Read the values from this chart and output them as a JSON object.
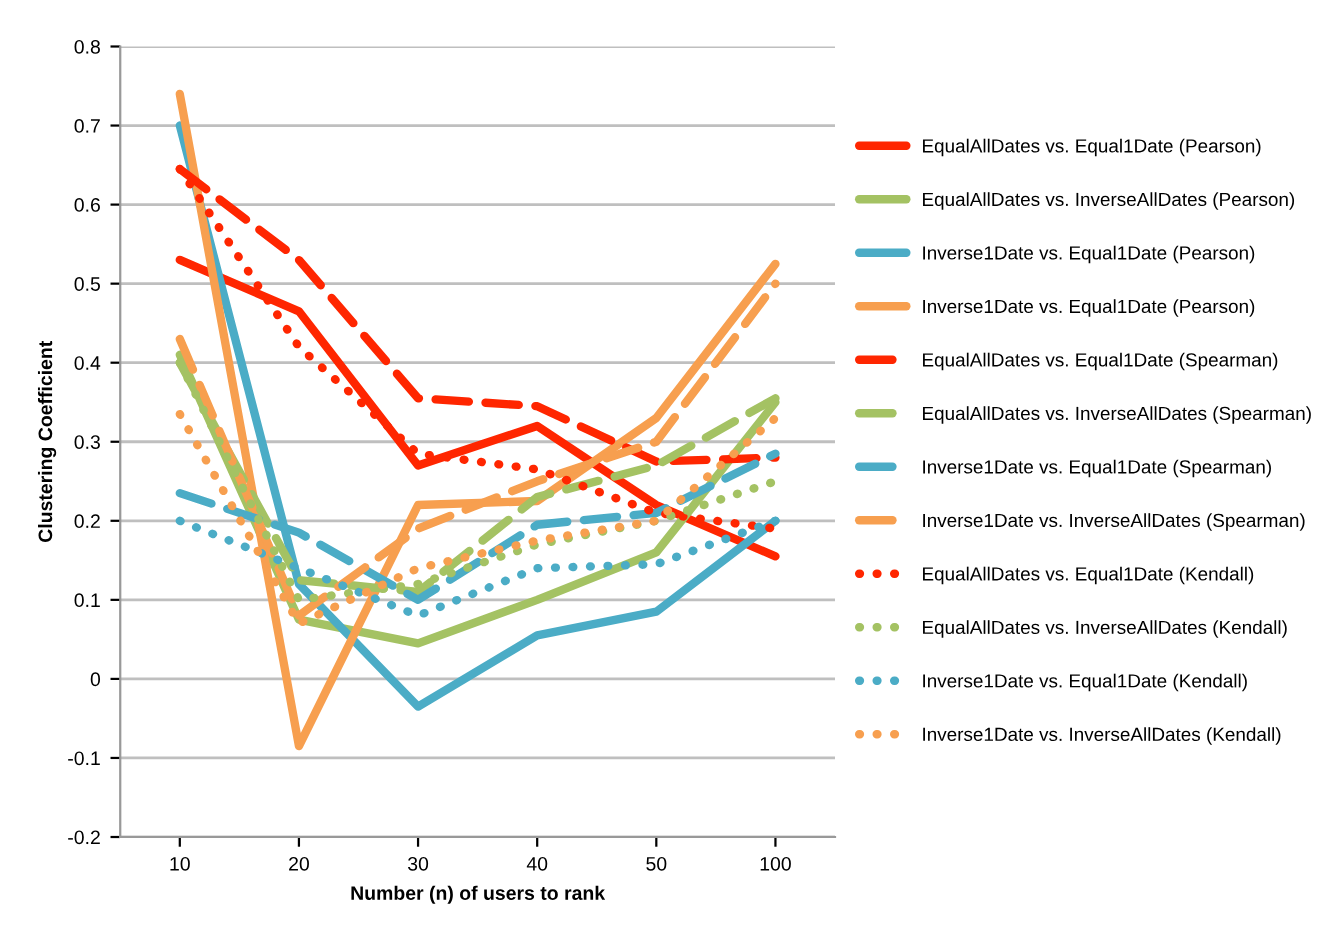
{
  "chart_data": {
    "type": "line",
    "xlabel": "Number (n) of users to rank",
    "ylabel": "Clustering Coefficient",
    "categories": [
      "10",
      "20",
      "30",
      "40",
      "50",
      "100"
    ],
    "ylim": [
      -0.2,
      0.8
    ],
    "yticks": [
      -0.2,
      -0.1,
      0,
      0.1,
      0.2,
      0.3,
      0.4,
      0.5,
      0.6,
      0.7,
      0.8
    ],
    "grid": "y",
    "legend": "right",
    "marker": "none",
    "series": [
      {
        "name": "EqualAllDates vs. Equal1Date (Pearson)",
        "color": "#ff2600",
        "line_style": "solid",
        "values": [
          0.53,
          0.465,
          0.27,
          0.32,
          0.22,
          0.155
        ]
      },
      {
        "name": "EqualAllDates vs. InverseAllDates (Pearson)",
        "color": "#a4c263",
        "line_style": "solid",
        "values": [
          0.41,
          0.075,
          0.045,
          0.1,
          0.16,
          0.35
        ]
      },
      {
        "name": "Inverse1Date vs. Equal1Date (Pearson)",
        "color": "#4bacc6",
        "line_style": "solid",
        "values": [
          0.7,
          0.12,
          -0.035,
          0.055,
          0.085,
          0.2
        ]
      },
      {
        "name": "Inverse1Date vs. Equal1Date (Pearson)",
        "color": "#f79f4f",
        "line_style": "solid",
        "values": [
          0.74,
          -0.085,
          0.22,
          0.225,
          0.33,
          0.525
        ]
      },
      {
        "name": "EqualAllDates vs. Equal1Date (Spearman)",
        "color": "#ff2600",
        "line_style": "dashed",
        "values": [
          0.645,
          0.53,
          0.355,
          0.345,
          0.275,
          0.28
        ]
      },
      {
        "name": "EqualAllDates vs. InverseAllDates (Spearman)",
        "color": "#a4c263",
        "line_style": "dashed",
        "values": [
          0.4,
          0.125,
          0.11,
          0.23,
          0.27,
          0.355
        ]
      },
      {
        "name": "Inverse1Date vs. Equal1Date (Spearman)",
        "color": "#4bacc6",
        "line_style": "dashed",
        "values": [
          0.235,
          0.185,
          0.1,
          0.195,
          0.21,
          0.285
        ]
      },
      {
        "name": "Inverse1Date vs. InverseAllDates (Spearman)",
        "color": "#f79f4f",
        "line_style": "dashed",
        "values": [
          0.43,
          0.08,
          0.19,
          0.25,
          0.3,
          0.5
        ]
      },
      {
        "name": "EqualAllDates vs. Equal1Date (Kendall)",
        "color": "#ff2600",
        "line_style": "dotted",
        "values": [
          0.645,
          0.42,
          0.285,
          0.265,
          0.21,
          0.19
        ]
      },
      {
        "name": "EqualAllDates vs. InverseAllDates (Kendall)",
        "color": "#a4c263",
        "line_style": "dotted",
        "values": [
          0.4,
          0.1,
          0.12,
          0.17,
          0.2,
          0.25
        ]
      },
      {
        "name": "Inverse1Date vs. Equal1Date (Kendall)",
        "color": "#4bacc6",
        "line_style": "dotted",
        "values": [
          0.2,
          0.14,
          0.08,
          0.14,
          0.145,
          0.2
        ]
      },
      {
        "name": "Inverse1Date vs. InverseAllDates (Kendall)",
        "color": "#f79f4f",
        "line_style": "dotted",
        "values": [
          0.335,
          0.07,
          0.14,
          0.175,
          0.2,
          0.33
        ]
      }
    ]
  }
}
